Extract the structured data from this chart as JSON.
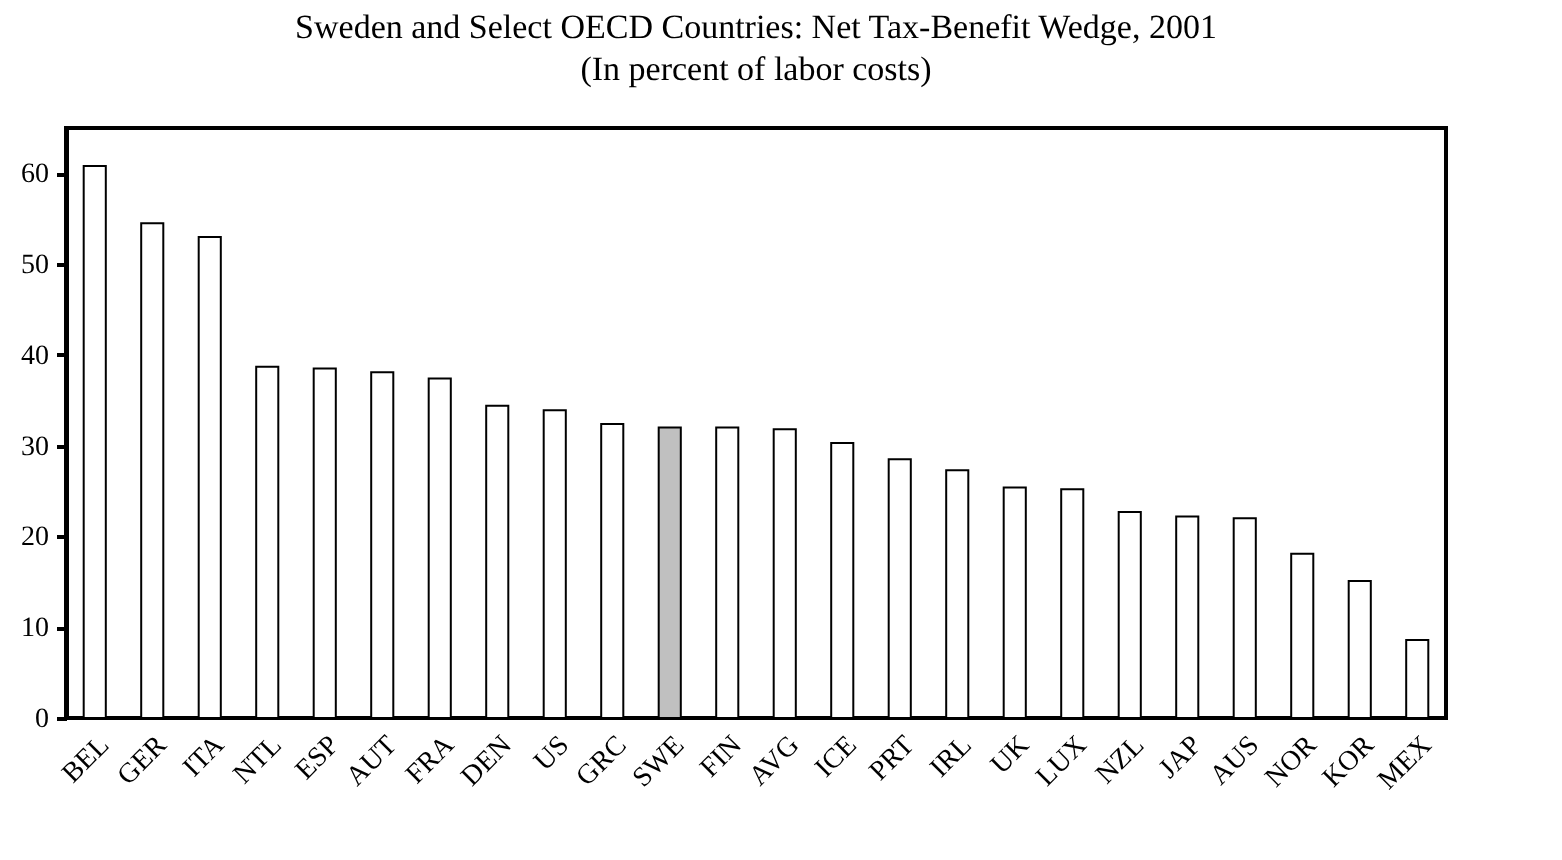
{
  "chart_data": {
    "type": "bar",
    "title": "Sweden and Select OECD Countries: Net Tax-Benefit Wedge, 2001",
    "subtitle": "(In percent of labor costs)",
    "categories": [
      "BEL",
      "GER",
      "ITA",
      "NTL",
      "ESP",
      "AUT",
      "FRA",
      "DEN",
      "US",
      "GRC",
      "SWE",
      "FIN",
      "AVG",
      "ICE",
      "PRT",
      "IRL",
      "UK",
      "LUX",
      "NZL",
      "JAP",
      "AUS",
      "NOR",
      "KOR",
      "MEX"
    ],
    "values": [
      60.8,
      54.5,
      53,
      38.7,
      38.5,
      38.1,
      37.4,
      34.4,
      33.9,
      32.4,
      32,
      32,
      31.8,
      30.3,
      28.5,
      27.3,
      25.4,
      25.2,
      22.7,
      22.2,
      22,
      18.1,
      15.1,
      8.6
    ],
    "colors": [
      "#ffffff",
      "#ffffff",
      "#ffffff",
      "#ffffff",
      "#ffffff",
      "#ffffff",
      "#ffffff",
      "#ffffff",
      "#ffffff",
      "#ffffff",
      "#c0c0c0",
      "#ffffff",
      "#ffffff",
      "#ffffff",
      "#ffffff",
      "#ffffff",
      "#ffffff",
      "#ffffff",
      "#ffffff",
      "#ffffff",
      "#ffffff",
      "#ffffff",
      "#ffffff",
      "#ffffff"
    ],
    "ylim": [
      0,
      65
    ],
    "yticks": [
      0,
      10,
      20,
      30,
      40,
      50,
      60
    ]
  }
}
